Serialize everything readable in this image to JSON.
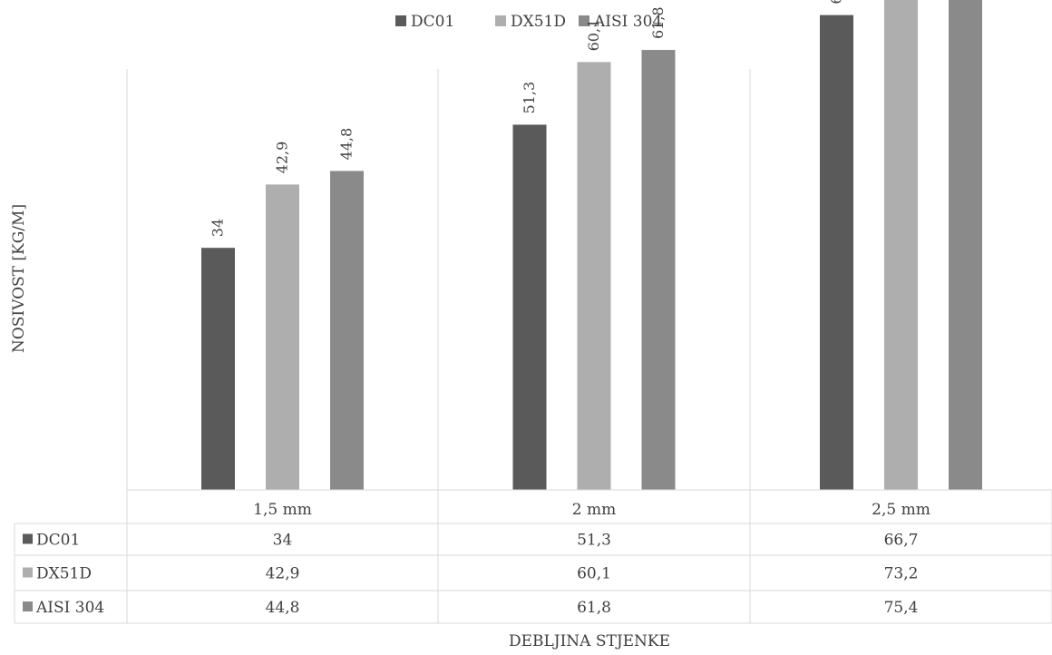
{
  "chart_data": {
    "type": "bar",
    "categories": [
      "1,5 mm",
      "2 mm",
      "2,5 mm"
    ],
    "series": [
      {
        "name": "DC01",
        "values": [
          34,
          51.3,
          66.7
        ],
        "labels": [
          "34",
          "51,3",
          "66,7"
        ],
        "color": "#5a5a5a"
      },
      {
        "name": "DX51D",
        "values": [
          42.9,
          60.1,
          73.2
        ],
        "labels": [
          "42,9",
          "60,1",
          "73,2"
        ],
        "color": "#aeaeae"
      },
      {
        "name": "AISI 304",
        "values": [
          44.8,
          61.8,
          75.4
        ],
        "labels": [
          "44,8",
          "61,8",
          "75,4"
        ],
        "color": "#8a8a8a"
      }
    ],
    "xlabel": "DEBLJINA STJENKE",
    "ylabel": "NOSIVOST [KG/M]",
    "ylim": [
      0,
      80
    ],
    "grid": false,
    "legend_position": "top",
    "data_table": true
  }
}
